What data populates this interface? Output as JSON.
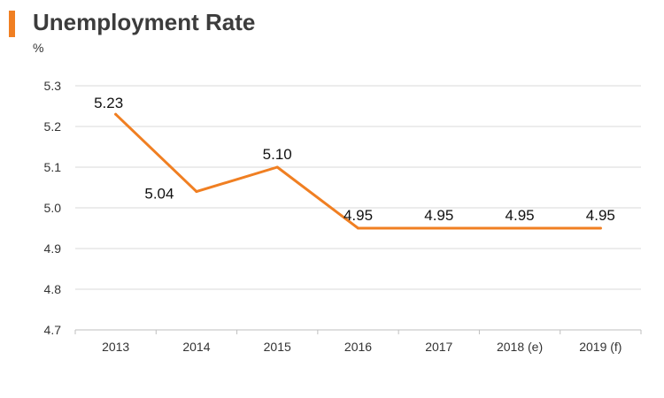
{
  "chart_data": {
    "type": "line",
    "title": "Unemployment Rate",
    "ylabel": "%",
    "xlabel": "",
    "categories": [
      "2013",
      "2014",
      "2015",
      "2016",
      "2017",
      "2018 (e)",
      "2019 (f)"
    ],
    "series": [
      {
        "values": [
          5.23,
          5.04,
          5.1,
          4.95,
          4.95,
          4.95,
          4.95
        ],
        "data_labels": [
          "5.23",
          "5.04",
          "5.10",
          "4.95",
          "4.95",
          "4.95",
          "4.95"
        ],
        "color": "#f07f22"
      }
    ],
    "ylim": [
      4.7,
      5.3
    ],
    "yticks": [
      "4.7",
      "4.8",
      "4.9",
      "5.0",
      "5.1",
      "5.2",
      "5.3"
    ],
    "grid": true,
    "legend": "none"
  },
  "colors": {
    "accent": "#f07f22",
    "grid": "#d9d9d9",
    "title_text": "#3c3c3c"
  }
}
